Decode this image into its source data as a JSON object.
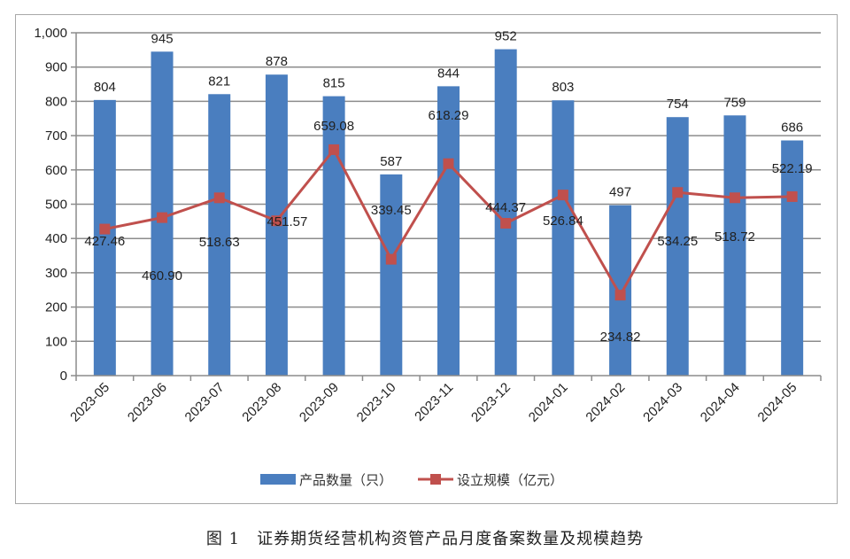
{
  "caption": "图 1　证券期货经营机构资管产品月度备案数量及规模趋势",
  "legend": {
    "bar_label": "产品数量（只）",
    "line_label": "设立规模（亿元）"
  },
  "colors": {
    "bar": "#4a7ebf",
    "line": "#c0504d",
    "grid": "#8c8c8c",
    "frame": "#a8a8a8"
  },
  "chart_data": {
    "type": "bar+line",
    "title": "图 1　证券期货经营机构资管产品月度备案数量及规模趋势",
    "xlabel": "",
    "ylabel": "",
    "ylim": [
      0,
      1000
    ],
    "yticks": [
      "0",
      "100",
      "200",
      "300",
      "400",
      "500",
      "600",
      "700",
      "800",
      "900",
      "1,000"
    ],
    "grid": true,
    "legend_position": "bottom",
    "categories": [
      "2023-05",
      "2023-06",
      "2023-07",
      "2023-08",
      "2023-09",
      "2023-10",
      "2023-11",
      "2023-12",
      "2024-01",
      "2024-02",
      "2024-03",
      "2024-04",
      "2024-05"
    ],
    "series": [
      {
        "name": "产品数量（只）",
        "type": "bar",
        "values": [
          804,
          945,
          821,
          878,
          815,
          587,
          844,
          952,
          803,
          497,
          754,
          759,
          686
        ],
        "labels": [
          "804",
          "945",
          "821",
          "878",
          "815",
          "587",
          "844",
          "952",
          "803",
          "497",
          "754",
          "759",
          "686"
        ]
      },
      {
        "name": "设立规模（亿元）",
        "type": "line",
        "marker": "square",
        "values": [
          427.46,
          460.9,
          518.63,
          451.57,
          659.08,
          339.45,
          618.29,
          444.37,
          526.84,
          234.82,
          534.25,
          518.72,
          522.19
        ],
        "labels": [
          "427.46",
          "460.90",
          "518.63",
          "451.57",
          "659.08",
          "339.45",
          "618.29",
          "444.37",
          "526.84",
          "234.82",
          "534.25",
          "518.72",
          "522.19"
        ]
      }
    ]
  }
}
